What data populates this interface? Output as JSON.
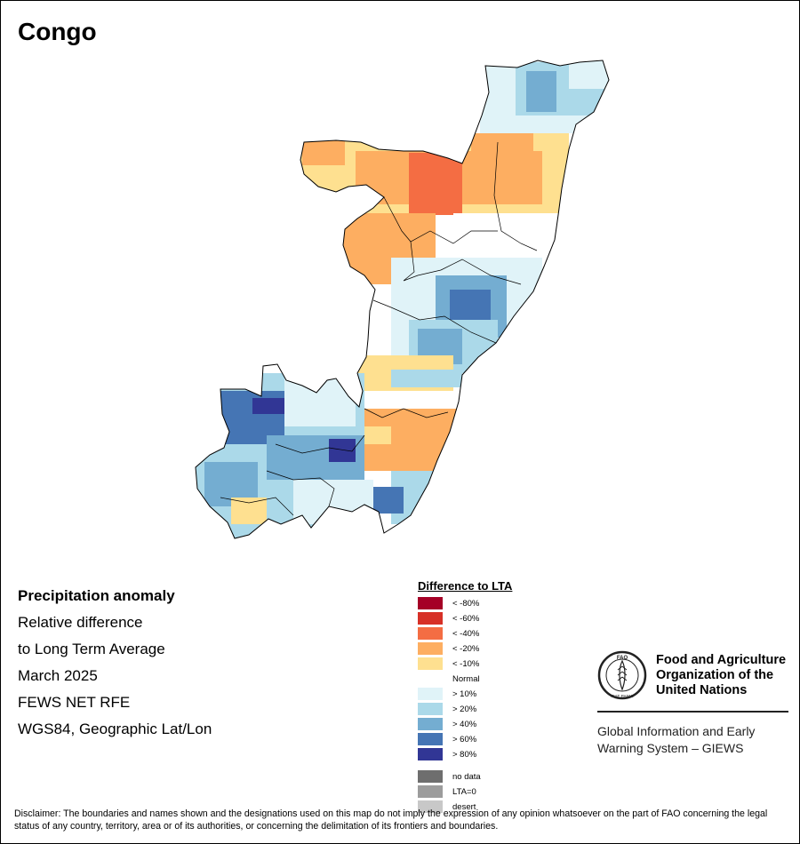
{
  "map": {
    "title": "Congo",
    "info_lines": [
      "Precipitation anomaly",
      "Relative difference",
      "to Long Term Average",
      "March 2025",
      "FEWS NET RFE",
      "WGS84, Geographic Lat/Lon"
    ],
    "legend": {
      "title": "Difference to LTA",
      "classes": [
        {
          "label": "< -80%",
          "color": "#a50026"
        },
        {
          "label": "< -60%",
          "color": "#d73027"
        },
        {
          "label": "< -40%",
          "color": "#f46d43"
        },
        {
          "label": "< -20%",
          "color": "#fdae61"
        },
        {
          "label": "< -10%",
          "color": "#fee090"
        },
        {
          "label": "Normal",
          "color": "#ffffff"
        },
        {
          "label": "> 10%",
          "color": "#e0f3f8"
        },
        {
          "label": "> 20%",
          "color": "#abd9e9"
        },
        {
          "label": "> 40%",
          "color": "#74add1"
        },
        {
          "label": "> 60%",
          "color": "#4575b4"
        },
        {
          "label": "> 80%",
          "color": "#313695"
        }
      ],
      "extra_classes": [
        {
          "label": "no data",
          "color": "#6e6e6e"
        },
        {
          "label": "LTA=0",
          "color": "#9c9c9c"
        },
        {
          "label": "desert",
          "color": "#c8c8c8"
        }
      ]
    },
    "fao": {
      "logo_text": "FAO",
      "logo_motto": "FIAT PANIS",
      "name_lines": [
        "Food and Agriculture",
        "Organization of the",
        "United Nations"
      ],
      "giews_lines": [
        "Global Information and Early",
        "Warning System – GIEWS"
      ]
    },
    "disclaimer": "Disclaimer: The boundaries and names shown and the designations used on this map do not imply the expression of any opinion whatsoever on the part of FAO concerning the legal status of any country, territory, area or of its authorities, or concerning the delimitation of its frontiers and boundaries."
  }
}
